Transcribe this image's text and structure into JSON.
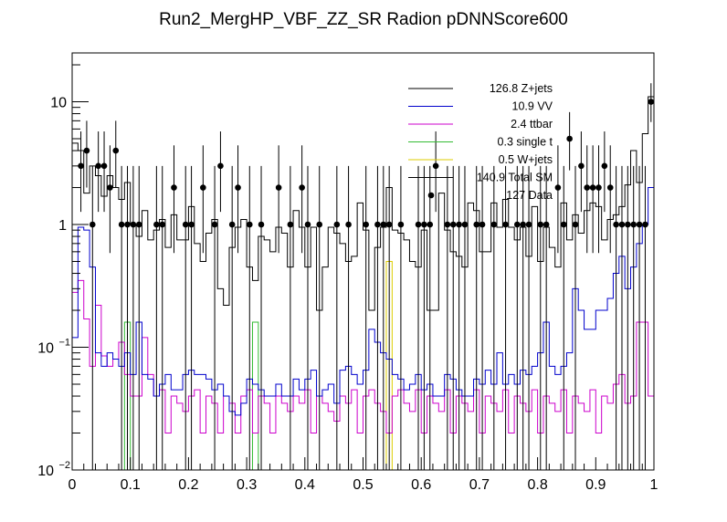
{
  "chart_data": {
    "type": "histogram",
    "title": "Run2_MergHP_VBF_ZZ_SR Radion  pDNNScore600",
    "xlabel": "",
    "ylabel": "",
    "xlim": [
      0,
      1
    ],
    "ylim": [
      0.01,
      25
    ],
    "yscale": "log",
    "nbins": 100,
    "x_ticks": [
      "0",
      "0.1",
      "0.2",
      "0.3",
      "0.4",
      "0.5",
      "0.6",
      "0.7",
      "0.8",
      "0.9",
      "1"
    ],
    "y_ticks": [
      {
        "value": 10,
        "label": "10",
        "exp": ""
      },
      {
        "value": 1,
        "label": "1",
        "exp": ""
      },
      {
        "value": 0.1,
        "label": "10",
        "exp": "−1"
      },
      {
        "value": 0.01,
        "label": "10",
        "exp": "−2"
      }
    ],
    "legend_position": "top-right",
    "legend": [
      {
        "label": "126.8 Z+jets",
        "color": "#000000",
        "kind": "line"
      },
      {
        "label": "10.9 VV",
        "color": "#0000cc",
        "kind": "line"
      },
      {
        "label": "2.4 ttbar",
        "color": "#cc00cc",
        "kind": "line"
      },
      {
        "label": "0.3 single t",
        "color": "#33bb33",
        "kind": "line"
      },
      {
        "label": "0.5 W+jets",
        "color": "#ddcc00",
        "kind": "line"
      },
      {
        "label": "140.9 Total SM",
        "color": "#000000",
        "kind": "line"
      },
      {
        "label": "127 Data",
        "color": "#000000",
        "kind": "marker"
      }
    ],
    "series": [
      {
        "name": "Total SM",
        "color": "#000000",
        "values": [
          4.6,
          4.0,
          1.8,
          3.0,
          2.5,
          1.7,
          2.5,
          2.0,
          1.6,
          2.2,
          1.0,
          0.8,
          1.3,
          0.75,
          0.9,
          1.1,
          0.65,
          1.2,
          0.75,
          0.75,
          1.4,
          0.7,
          0.5,
          0.85,
          1.1,
          0.3,
          0.22,
          0.65,
          0.95,
          1.1,
          0.45,
          0.35,
          0.8,
          0.75,
          0.6,
          0.95,
          0.85,
          0.45,
          1.3,
          0.95,
          0.45,
          0.95,
          0.2,
          0.45,
          0.95,
          0.85,
          0.7,
          0.5,
          0.55,
          1.5,
          0.9,
          0.2,
          0.65,
          0.95,
          2.0,
          0.9,
          0.85,
          0.75,
          0.5,
          0.45,
          0.9,
          0.2,
          0.2,
          1.8,
          0.9,
          0.6,
          0.55,
          0.45,
          1.5,
          1.3,
          0.6,
          0.6,
          1.5,
          0.95,
          1.6,
          0.95,
          0.75,
          0.95,
          0.55,
          1.4,
          0.5,
          0.95,
          0.65,
          0.45,
          1.5,
          0.75,
          1.2,
          0.85,
          1.3,
          1.5,
          1.4,
          0.75,
          1.1,
          1.2,
          1.4,
          2.1,
          4.0,
          2.2,
          5.5,
          11.0
        ]
      },
      {
        "name": "VV",
        "color": "#0000cc",
        "values": [
          0.12,
          0.95,
          0.9,
          0.45,
          0.09,
          0.07,
          0.09,
          0.08,
          0.07,
          0.09,
          0.06,
          0.16,
          0.06,
          0.055,
          0.04,
          0.05,
          0.06,
          0.045,
          0.045,
          0.06,
          0.065,
          0.06,
          0.06,
          0.055,
          0.045,
          0.05,
          0.04,
          0.03,
          0.028,
          0.035,
          0.055,
          0.05,
          0.045,
          0.04,
          0.04,
          0.05,
          0.04,
          0.04,
          0.055,
          0.045,
          0.055,
          0.065,
          0.04,
          0.045,
          0.05,
          0.035,
          0.065,
          0.07,
          0.06,
          0.05,
          0.065,
          0.14,
          0.11,
          0.09,
          0.08,
          0.06,
          0.055,
          0.045,
          0.05,
          0.06,
          0.045,
          0.05,
          0.04,
          0.04,
          0.06,
          0.055,
          0.045,
          0.04,
          0.04,
          0.055,
          0.05,
          0.065,
          0.05,
          0.09,
          0.05,
          0.06,
          0.05,
          0.065,
          0.06,
          0.07,
          0.09,
          0.16,
          0.07,
          0.06,
          0.07,
          0.09,
          0.3,
          0.2,
          0.14,
          0.14,
          0.2,
          0.2,
          0.25,
          0.4,
          0.55,
          0.3,
          0.45,
          0.7,
          1.0,
          2.0
        ]
      },
      {
        "name": "ttbar",
        "color": "#cc00cc",
        "values": [
          0.28,
          0.35,
          0.17,
          0.07,
          0.22,
          0.085,
          0.07,
          0.08,
          0.11,
          0.06,
          0.04,
          0.04,
          0.12,
          0.06,
          0.04,
          0.045,
          0.02,
          0.04,
          0.035,
          0.03,
          0.04,
          0.045,
          0.02,
          0.04,
          0.035,
          0.02,
          0.04,
          0.035,
          0.02,
          0.04,
          0.045,
          0.02,
          0.04,
          0.035,
          0.02,
          0.04,
          0.035,
          0.03,
          0.04,
          0.035,
          0.045,
          0.02,
          0.04,
          0.035,
          0.03,
          0.025,
          0.04,
          0.035,
          0.045,
          0.02,
          0.04,
          0.045,
          0.035,
          0.03,
          0.02,
          0.04,
          0.045,
          0.035,
          0.03,
          0.045,
          0.02,
          0.04,
          0.035,
          0.03,
          0.045,
          0.02,
          0.04,
          0.035,
          0.03,
          0.045,
          0.02,
          0.04,
          0.035,
          0.03,
          0.045,
          0.02,
          0.04,
          0.035,
          0.03,
          0.045,
          0.02,
          0.04,
          0.035,
          0.03,
          0.045,
          0.02,
          0.04,
          0.035,
          0.03,
          0.045,
          0.02,
          0.04,
          0.035,
          0.05,
          0.06,
          0.035,
          0.04,
          0.16,
          0.16,
          0.04
        ]
      },
      {
        "name": "single t",
        "color": "#33bb33",
        "values": [
          0,
          0,
          0,
          0,
          0,
          0,
          0,
          0,
          0,
          0.16,
          0,
          0,
          0,
          0,
          0,
          0,
          0,
          0,
          0,
          0,
          0,
          0,
          0,
          0,
          0,
          0,
          0,
          0,
          0,
          0,
          0,
          0.16,
          0,
          0,
          0,
          0,
          0,
          0,
          0,
          0,
          0,
          0,
          0,
          0,
          0,
          0,
          0,
          0,
          0,
          0,
          0,
          0,
          0,
          0,
          0,
          0,
          0,
          0,
          0,
          0,
          0,
          0,
          0,
          0,
          0,
          0,
          0,
          0,
          0,
          0,
          0,
          0,
          0,
          0,
          0,
          0,
          0,
          0,
          0,
          0,
          0,
          0,
          0,
          0,
          0,
          0,
          0,
          0,
          0,
          0,
          0,
          0,
          0,
          0,
          0,
          0,
          0,
          0,
          0,
          0
        ]
      },
      {
        "name": "W+jets",
        "color": "#ddcc00",
        "values": [
          0,
          0,
          0,
          0,
          0,
          0,
          0,
          0,
          0,
          0,
          0,
          0,
          0,
          0,
          0,
          0,
          0,
          0,
          0,
          0,
          0,
          0,
          0,
          0,
          0,
          0,
          0,
          0,
          0,
          0,
          0,
          0,
          0,
          0,
          0,
          0,
          0,
          0,
          0,
          0,
          0,
          0,
          0,
          0,
          0,
          0,
          0,
          0,
          0,
          0,
          0,
          0,
          0,
          0,
          0.5,
          0,
          0,
          0,
          0,
          0,
          0,
          0,
          0,
          0,
          0,
          0,
          0,
          0,
          0,
          0,
          0,
          0,
          0,
          0,
          0,
          0,
          0,
          0,
          0,
          0,
          0,
          0,
          0,
          0,
          0,
          0,
          0,
          0,
          0,
          0,
          0,
          0,
          0,
          0,
          0,
          0,
          0,
          0,
          0,
          0
        ]
      }
    ],
    "data_points": {
      "name": "Data",
      "x": [
        0.015,
        0.025,
        0.035,
        0.045,
        0.055,
        0.065,
        0.075,
        0.085,
        0.095,
        0.105,
        0.115,
        0.145,
        0.155,
        0.175,
        0.195,
        0.205,
        0.225,
        0.245,
        0.255,
        0.275,
        0.285,
        0.305,
        0.325,
        0.355,
        0.375,
        0.395,
        0.405,
        0.425,
        0.455,
        0.475,
        0.505,
        0.525,
        0.535,
        0.545,
        0.565,
        0.595,
        0.605,
        0.615,
        0.625,
        0.645,
        0.655,
        0.665,
        0.675,
        0.695,
        0.705,
        0.725,
        0.745,
        0.765,
        0.775,
        0.785,
        0.805,
        0.815,
        0.835,
        0.845,
        0.855,
        0.865,
        0.875,
        0.885,
        0.895,
        0.905,
        0.915,
        0.925,
        0.935,
        0.945,
        0.955,
        0.965,
        0.975,
        0.985,
        0.995
      ],
      "y": [
        3,
        4,
        1,
        3,
        3,
        2,
        4,
        1,
        1,
        1,
        1,
        1,
        1,
        2,
        1,
        1,
        2,
        1,
        3,
        1,
        2,
        1,
        1,
        2,
        1,
        2,
        1,
        1,
        1,
        1,
        1,
        1,
        1,
        1,
        1,
        1,
        1,
        1,
        3,
        1,
        1,
        1,
        1,
        1,
        1,
        1,
        1,
        1,
        1,
        1,
        1,
        1,
        2,
        1,
        5,
        1,
        3,
        2,
        2,
        2,
        3,
        2,
        1,
        1,
        1,
        1,
        1,
        1,
        10
      ]
    }
  }
}
